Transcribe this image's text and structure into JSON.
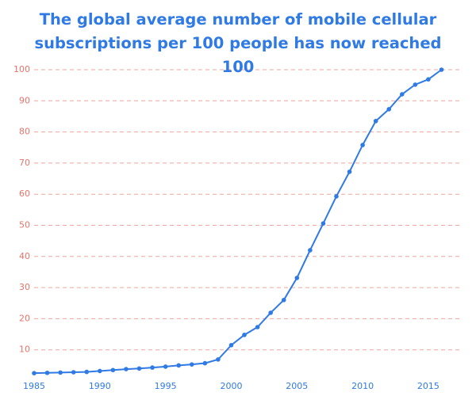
{
  "chart_data": {
    "type": "line",
    "title": "The global average number of mobile cellular subscriptions per 100 people has now reached 100",
    "x": [
      1985,
      1986,
      1987,
      1988,
      1989,
      1990,
      1991,
      1992,
      1993,
      1994,
      1995,
      1996,
      1997,
      1998,
      1999,
      2000,
      2001,
      2002,
      2003,
      2004,
      2005,
      2006,
      2007,
      2008,
      2009,
      2010,
      2011,
      2012,
      2013,
      2014,
      2015,
      2016
    ],
    "values": [
      2.5,
      2.6,
      2.7,
      2.8,
      2.9,
      3.2,
      3.5,
      3.8,
      4.0,
      4.3,
      4.6,
      5.0,
      5.3,
      5.7,
      6.9,
      11.5,
      14.8,
      17.3,
      21.9,
      26.0,
      33.1,
      42.0,
      50.6,
      59.3,
      67.2,
      75.8,
      83.5,
      87.3,
      92.1,
      95.2,
      96.9,
      100
    ],
    "color": "#2f7ae5",
    "xlim": [
      1985,
      2017.6
    ],
    "xticks": [
      1985,
      1990,
      1995,
      2000,
      2005,
      2010,
      2015
    ],
    "ylim": [
      0,
      100
    ],
    "yticks": [
      10,
      20,
      30,
      40,
      50,
      60,
      70,
      80,
      90,
      100
    ],
    "grid": true
  }
}
